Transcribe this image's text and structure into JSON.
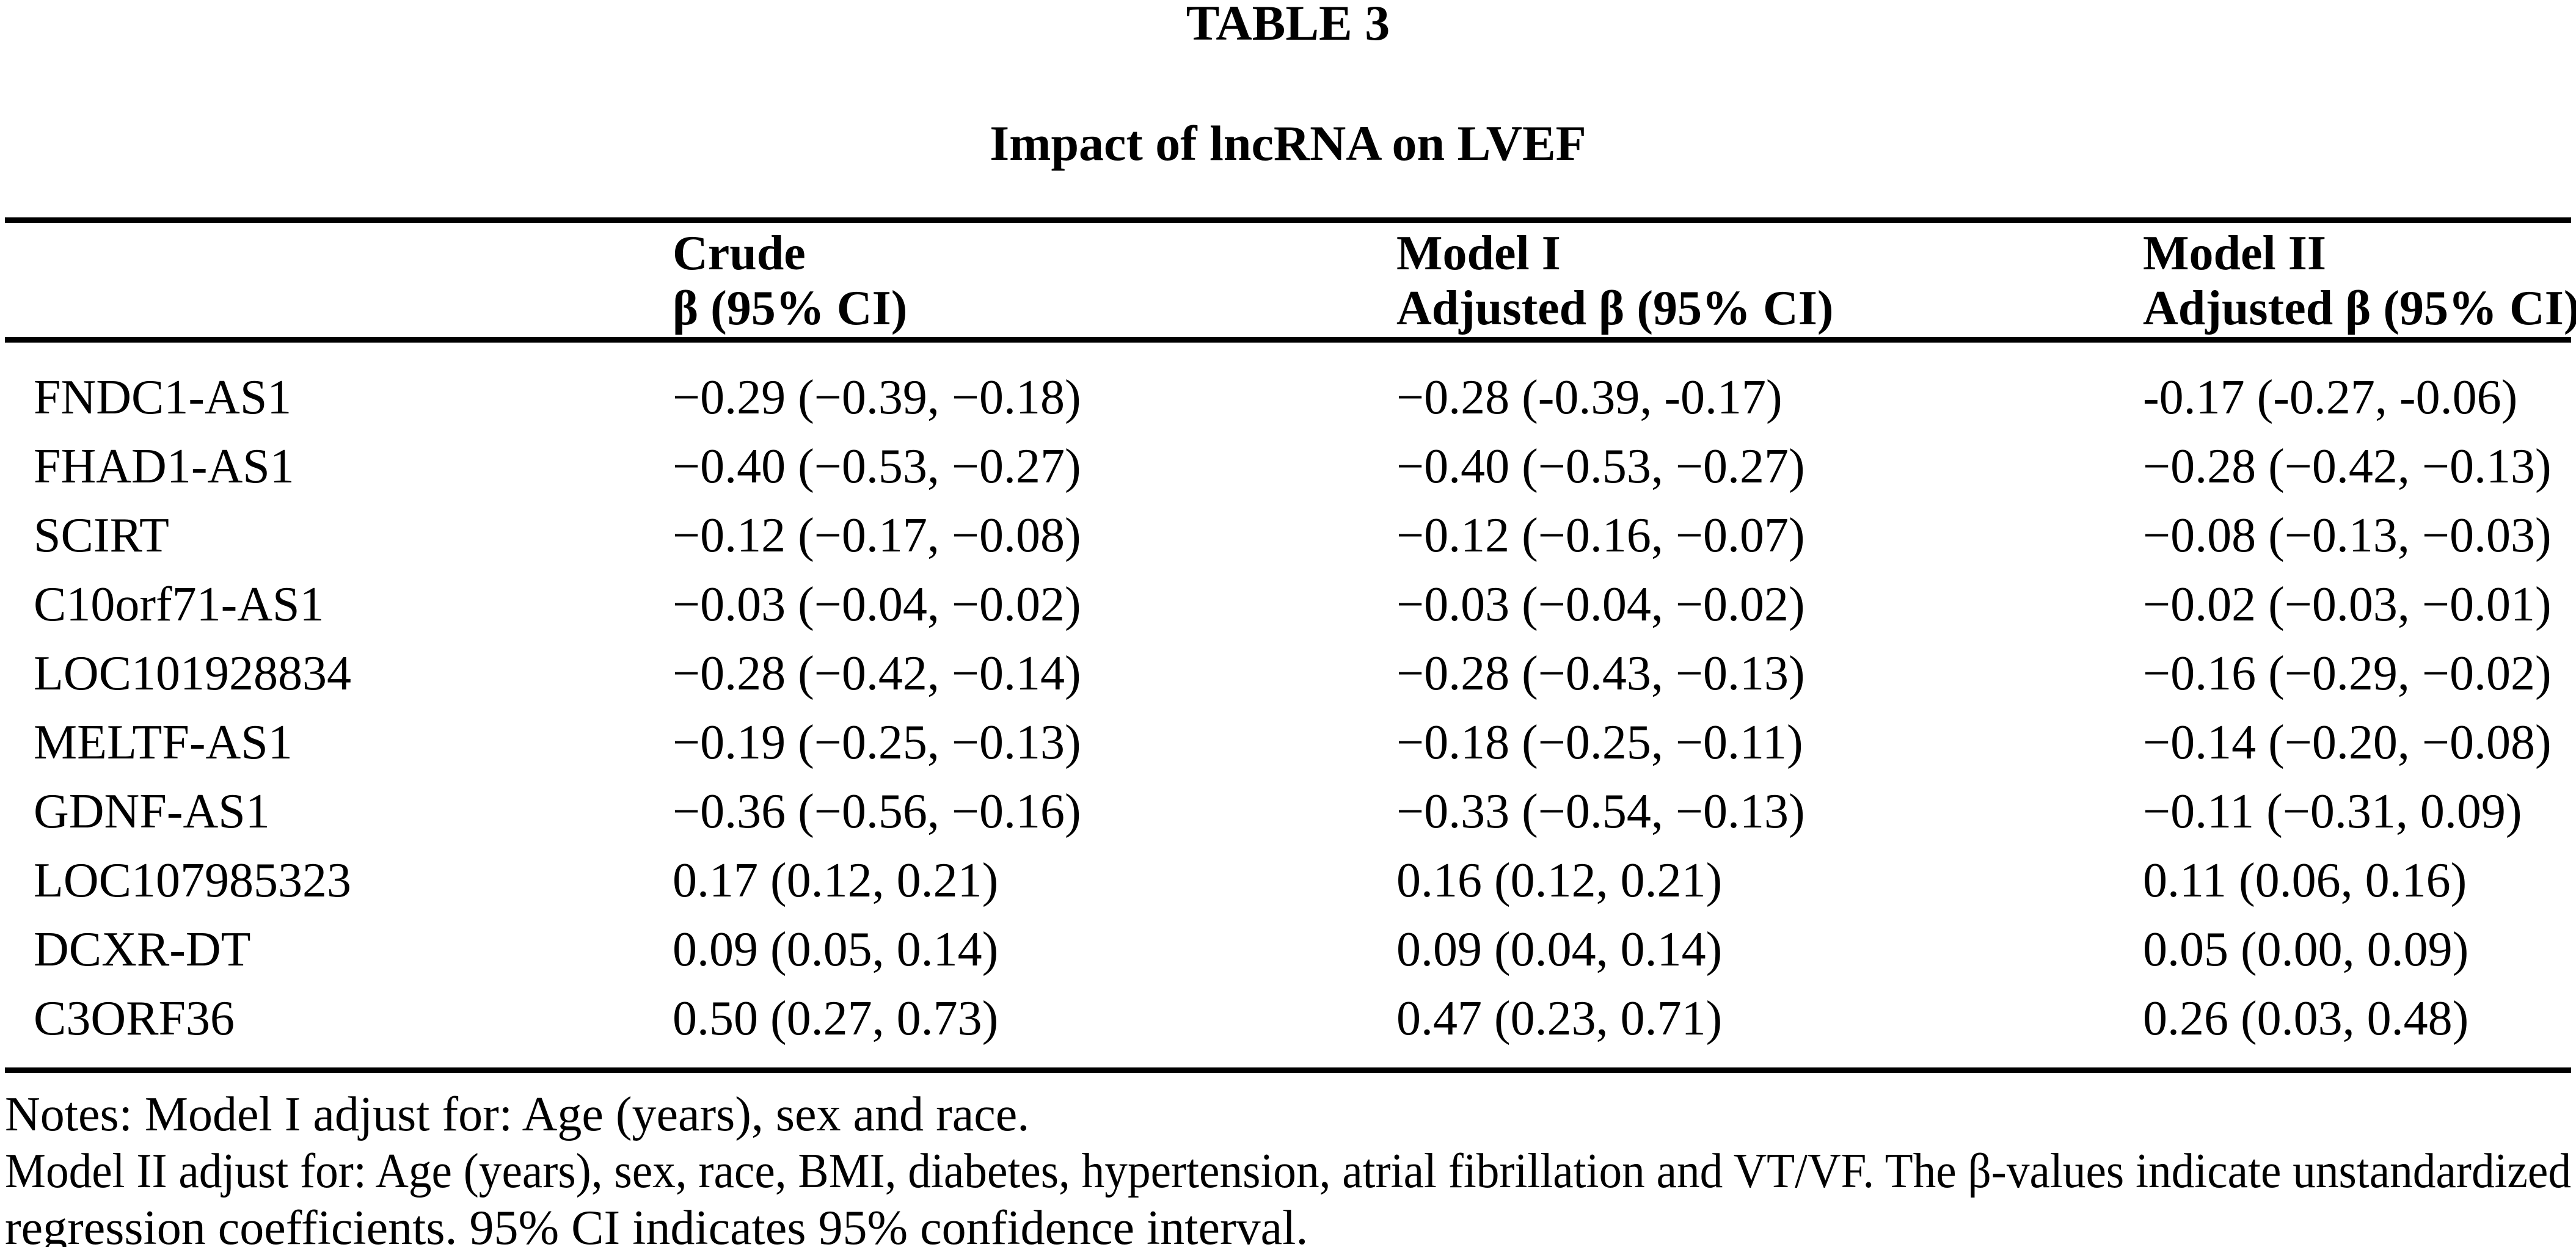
{
  "table": {
    "label": "TABLE 3",
    "title": "Impact of lncRNA on LVEF",
    "columns": {
      "gene": {
        "line1": "",
        "line2": ""
      },
      "crude": {
        "line1": "Crude",
        "line2": "β (95% CI)"
      },
      "model1": {
        "line1": "Model I",
        "line2": "Adjusted β (95% CI)"
      },
      "model2": {
        "line1": "Model II",
        "line2": "Adjusted β (95% CI)"
      }
    },
    "rows": [
      {
        "gene": "FNDC1-AS1",
        "crude": "−0.29 (−0.39, −0.18)",
        "model1": "−0.28 (-0.39, -0.17)",
        "model2": "-0.17 (-0.27, -0.06)"
      },
      {
        "gene": "FHAD1-AS1",
        "crude": "−0.40 (−0.53, −0.27)",
        "model1": "−0.40 (−0.53, −0.27)",
        "model2": "−0.28 (−0.42, −0.13)"
      },
      {
        "gene": "SCIRT",
        "crude": "−0.12 (−0.17, −0.08)",
        "model1": "−0.12 (−0.16, −0.07)",
        "model2": "−0.08 (−0.13, −0.03)"
      },
      {
        "gene": "C10orf71-AS1",
        "crude": "−0.03 (−0.04, −0.02)",
        "model1": "−0.03 (−0.04, −0.02)",
        "model2": "−0.02 (−0.03, −0.01)"
      },
      {
        "gene": "LOC101928834",
        "crude": "−0.28 (−0.42, −0.14)",
        "model1": "−0.28 (−0.43, −0.13)",
        "model2": "−0.16 (−0.29, −0.02)"
      },
      {
        "gene": "MELTF-AS1",
        "crude": "−0.19 (−0.25, −0.13)",
        "model1": "−0.18 (−0.25, −0.11)",
        "model2": "−0.14 (−0.20, −0.08)"
      },
      {
        "gene": "GDNF-AS1",
        "crude": "−0.36 (−0.56, −0.16)",
        "model1": "−0.33 (−0.54, −0.13)",
        "model2": "−0.11 (−0.31, 0.09)"
      },
      {
        "gene": "LOC107985323",
        "crude": "0.17 (0.12, 0.21)",
        "model1": "0.16 (0.12, 0.21)",
        "model2": "0.11 (0.06, 0.16)"
      },
      {
        "gene": "DCXR-DT",
        "crude": "0.09 (0.05, 0.14)",
        "model1": "0.09 (0.04, 0.14)",
        "model2": "0.05 (0.00, 0.09)"
      },
      {
        "gene": "C3ORF36",
        "crude": "0.50 (0.27, 0.73)",
        "model1": "0.47 (0.23, 0.71)",
        "model2": "0.26 (0.03, 0.48)"
      }
    ],
    "notes_lines": [
      "Notes: Model I adjust for: Age (years), sex and race.",
      "Model II adjust for: Age (years), sex, race, BMI, diabetes, hypertension, atrial fibrillation and VT/VF. The β-values indicate unstandardized",
      "regression coefficients. 95% CI indicates 95% confidence interval."
    ],
    "colors": {
      "text": "#000000",
      "background": "#ffffff",
      "rule": "#000000"
    }
  }
}
